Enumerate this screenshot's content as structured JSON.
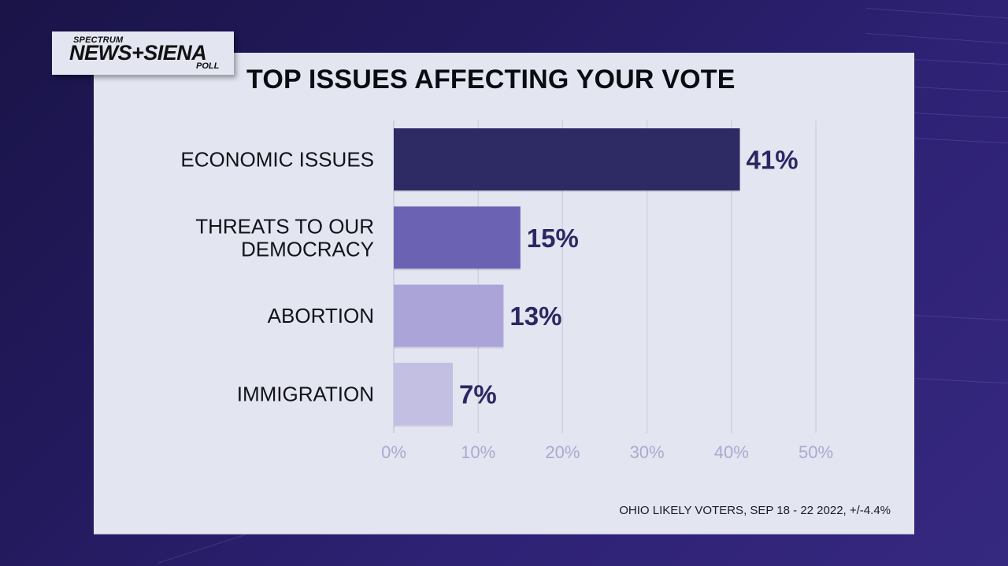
{
  "logo": {
    "line1": "SPECTRUM",
    "line2": "NEWS+SIENA",
    "line3": "POLL"
  },
  "chart_data": {
    "type": "bar",
    "orientation": "horizontal",
    "title": "TOP ISSUES AFFECTING YOUR VOTE",
    "categories": [
      [
        "ECONOMIC ISSUES"
      ],
      [
        "THREATS TO OUR",
        "DEMOCRACY"
      ],
      [
        "ABORTION"
      ],
      [
        "IMMIGRATION"
      ]
    ],
    "values": [
      41,
      15,
      13,
      7
    ],
    "value_labels": [
      "41%",
      "15%",
      "13%",
      "7%"
    ],
    "bar_colors": [
      "#2e2a64",
      "#6c62b4",
      "#aba4d9",
      "#c3bfe3"
    ],
    "xlim": [
      0,
      50
    ],
    "xticks": [
      0,
      10,
      20,
      30,
      40,
      50
    ],
    "xtick_labels": [
      "0%",
      "10%",
      "20%",
      "30%",
      "40%",
      "50%"
    ],
    "xlabel": "",
    "ylabel": "",
    "grid": true,
    "legend": "none",
    "source_note": "OHIO LIKELY VOTERS, SEP 18 - 22 2022, +/-4.4%"
  }
}
